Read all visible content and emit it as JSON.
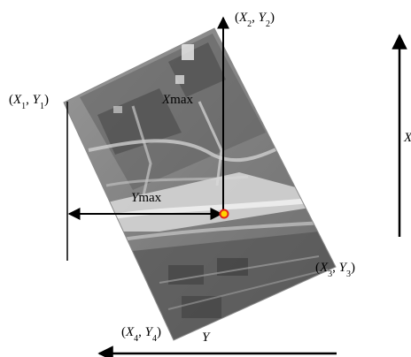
{
  "corners": {
    "c1": {
      "x": "X",
      "xsub": "1",
      "y": "Y",
      "ysub": "1"
    },
    "c2": {
      "x": "X",
      "xsub": "2",
      "y": "Y",
      "ysub": "2"
    },
    "c3": {
      "x": "X",
      "xsub": "3",
      "y": "Y",
      "ysub": "3"
    },
    "c4": {
      "x": "X",
      "xsub": "4",
      "y": "Y",
      "ysub": "4"
    }
  },
  "labels": {
    "xmax_italic": "X",
    "xmax_rest": "max",
    "ymax_italic": "Y",
    "ymax_rest": "max",
    "axis_x": "X",
    "axis_y": "Y"
  },
  "colors": {
    "arrow": "#000000",
    "center_point_fill": "#ffd400",
    "center_point_stroke": "#e2261b",
    "image_base": "#8a8a8a"
  }
}
